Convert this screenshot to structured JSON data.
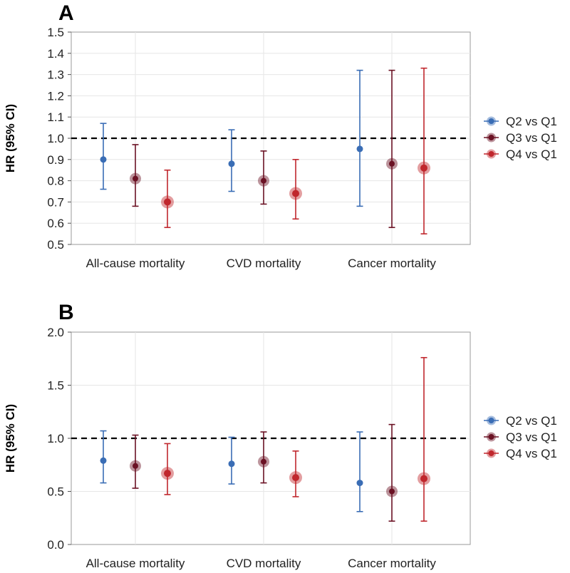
{
  "chart_data": [
    {
      "type": "scatter",
      "panel_label": "A",
      "title": "",
      "xlabel": "",
      "ylabel": "HR (95% CI)",
      "ylim": [
        0.5,
        1.5
      ],
      "yticks": [
        0.5,
        0.6,
        0.7,
        0.8,
        0.9,
        1.0,
        1.1,
        1.2,
        1.3,
        1.4,
        1.5
      ],
      "ytick_labels": [
        "0.5",
        "0.6",
        "0.7",
        "0.8",
        "0.9",
        "1.0",
        "1.1",
        "1.2",
        "1.3",
        "1.4",
        "1.5"
      ],
      "reference_line": 1.0,
      "grid": true,
      "legend_position": "right",
      "categories": [
        "All-cause mortality",
        "CVD mortality",
        "Cancer mortality"
      ],
      "series": [
        {
          "name": "Q2 vs Q1",
          "color": "#3a6db5",
          "hr": [
            0.9,
            0.88,
            0.95
          ],
          "lower": [
            0.76,
            0.75,
            0.68
          ],
          "upper": [
            1.07,
            1.04,
            1.32
          ]
        },
        {
          "name": "Q3 vs Q1",
          "color": "#6b1224",
          "hr": [
            0.81,
            0.8,
            0.88
          ],
          "lower": [
            0.68,
            0.69,
            0.58
          ],
          "upper": [
            0.97,
            0.94,
            1.32
          ]
        },
        {
          "name": "Q4 vs Q1",
          "color": "#c0272d",
          "hr": [
            0.7,
            0.74,
            0.86
          ],
          "lower": [
            0.58,
            0.62,
            0.55
          ],
          "upper": [
            0.85,
            0.9,
            1.33
          ]
        }
      ]
    },
    {
      "type": "scatter",
      "panel_label": "B",
      "title": "",
      "xlabel": "",
      "ylabel": "HR (95% CI)",
      "ylim": [
        0.0,
        2.0
      ],
      "yticks": [
        0.0,
        0.5,
        1.0,
        1.5,
        2.0
      ],
      "ytick_labels": [
        "0.0",
        "0.5",
        "1.0",
        "1.5",
        "2.0"
      ],
      "reference_line": 1.0,
      "grid": true,
      "legend_position": "right",
      "categories": [
        "All-cause mortality",
        "CVD mortality",
        "Cancer mortality"
      ],
      "series": [
        {
          "name": "Q2 vs Q1",
          "color": "#3a6db5",
          "hr": [
            0.79,
            0.76,
            0.58
          ],
          "lower": [
            0.58,
            0.57,
            0.31
          ],
          "upper": [
            1.07,
            1.01,
            1.06
          ]
        },
        {
          "name": "Q3 vs Q1",
          "color": "#6b1224",
          "hr": [
            0.74,
            0.78,
            0.5
          ],
          "lower": [
            0.53,
            0.58,
            0.22
          ],
          "upper": [
            1.03,
            1.06,
            1.13
          ]
        },
        {
          "name": "Q4 vs Q1",
          "color": "#c0272d",
          "hr": [
            0.67,
            0.63,
            0.62
          ],
          "lower": [
            0.47,
            0.45,
            0.22
          ],
          "upper": [
            0.95,
            0.88,
            1.76
          ]
        }
      ]
    }
  ]
}
